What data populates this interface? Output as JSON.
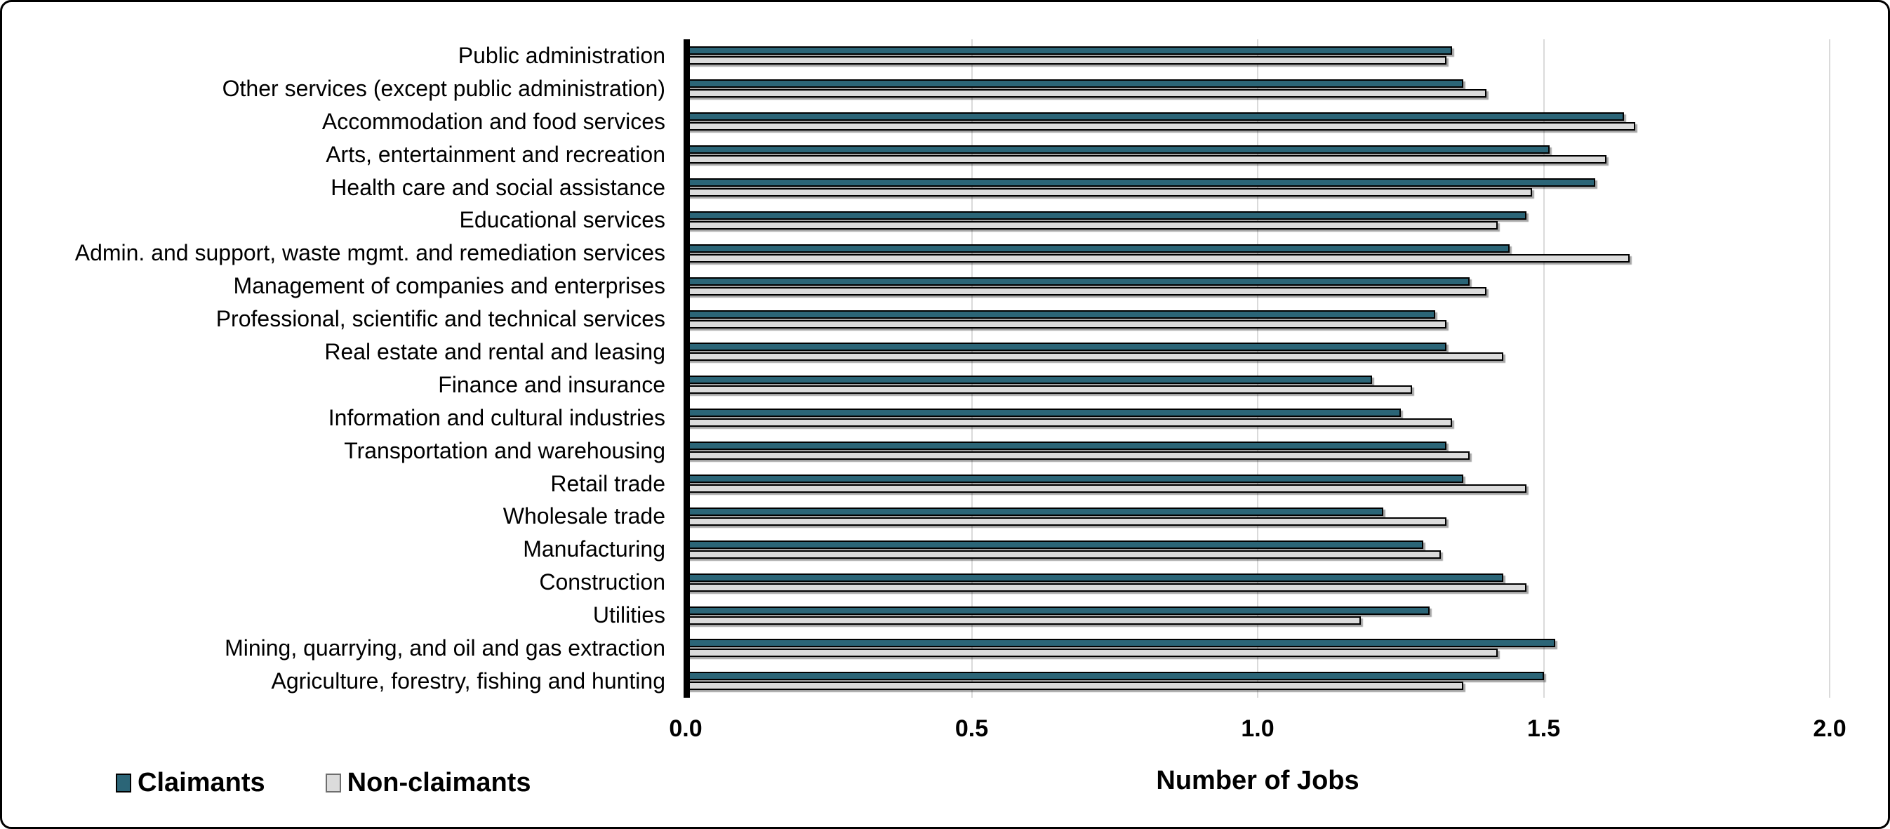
{
  "frame": {
    "background": "#FFFFFF",
    "border_color": "#000000"
  },
  "chart_data": {
    "type": "bar",
    "orientation": "horizontal",
    "title": "",
    "xlabel": "Number of Jobs",
    "ylabel": "",
    "xlim": [
      0,
      2
    ],
    "xticks": [
      "0.0",
      "0.5",
      "1.0",
      "1.5",
      "2.0"
    ],
    "grid": "vertical-light-gray",
    "gridline_color": "#DADADA",
    "axis_color": "#000000",
    "legend_position": "bottom-left",
    "categories": [
      "Public administration",
      "Other services (except public administration)",
      "Accommodation and food services",
      "Arts, entertainment and recreation",
      "Health care and social assistance",
      "Educational services",
      "Admin. and support, waste mgmt. and remediation services",
      "Management of companies and enterprises",
      "Professional, scientific and technical services",
      "Real estate and rental and leasing",
      "Finance and insurance",
      "Information and cultural industries",
      "Transportation and warehousing",
      "Retail trade",
      "Wholesale trade",
      "Manufacturing",
      "Construction",
      "Utilities",
      "Mining, quarrying, and oil and gas extraction",
      "Agriculture, forestry, fishing and hunting"
    ],
    "series": [
      {
        "name": "Claimants",
        "color": "#2B6577",
        "swatch_border": "#000000",
        "values": [
          1.34,
          1.36,
          1.64,
          1.51,
          1.59,
          1.47,
          1.44,
          1.37,
          1.31,
          1.33,
          1.2,
          1.25,
          1.33,
          1.36,
          1.22,
          1.29,
          1.43,
          1.3,
          1.52,
          1.5
        ]
      },
      {
        "name": "Non-claimants",
        "color": "#DCDCDC",
        "swatch_border": "#6E6E6E",
        "values": [
          1.33,
          1.4,
          1.66,
          1.61,
          1.48,
          1.42,
          1.65,
          1.4,
          1.33,
          1.43,
          1.27,
          1.34,
          1.37,
          1.47,
          1.33,
          1.32,
          1.47,
          1.18,
          1.42,
          1.36
        ]
      }
    ]
  }
}
